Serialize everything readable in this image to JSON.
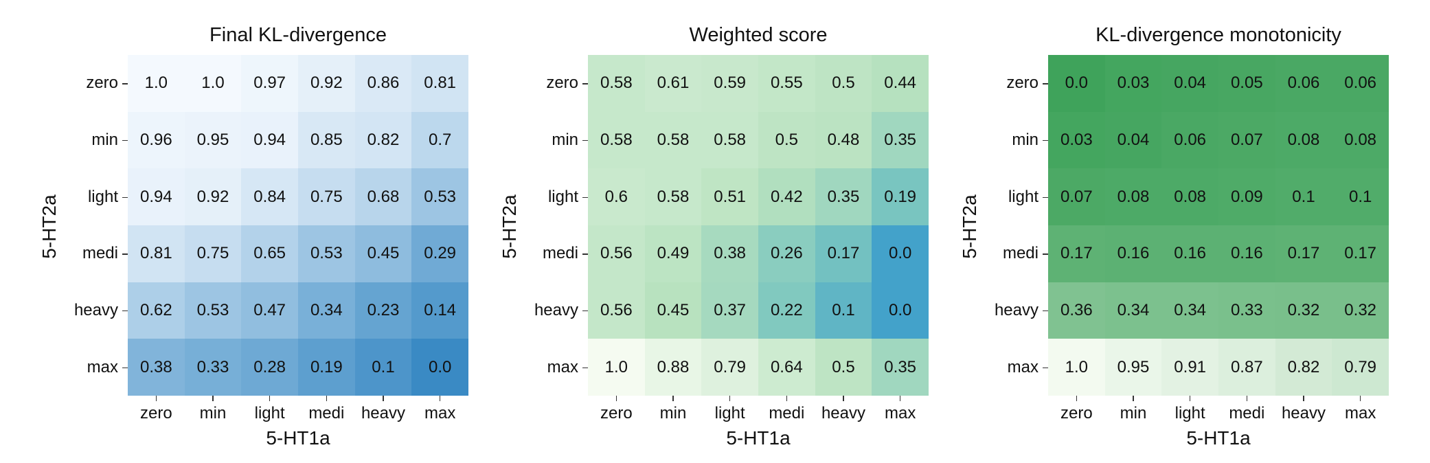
{
  "chart_data": [
    {
      "type": "heatmap",
      "title": "Final KL-divergence",
      "xlabel": "5-HT1a",
      "ylabel": "5-HT2a",
      "x_categories": [
        "zero",
        "min",
        "light",
        "medi",
        "heavy",
        "max"
      ],
      "y_categories": [
        "zero",
        "min",
        "light",
        "medi",
        "heavy",
        "max"
      ],
      "colormap": "Blues",
      "color_range": [
        0.0,
        1.0
      ],
      "low_color": "#f4f9fe",
      "high_color": "#3a8ac4",
      "values": [
        [
          1.0,
          1.0,
          0.97,
          0.92,
          0.86,
          0.81
        ],
        [
          0.96,
          0.95,
          0.94,
          0.85,
          0.82,
          0.7
        ],
        [
          0.94,
          0.92,
          0.84,
          0.75,
          0.68,
          0.53
        ],
        [
          0.81,
          0.75,
          0.65,
          0.53,
          0.45,
          0.29
        ],
        [
          0.62,
          0.53,
          0.47,
          0.34,
          0.23,
          0.14
        ],
        [
          0.38,
          0.33,
          0.28,
          0.19,
          0.1,
          0.0
        ]
      ],
      "labels": [
        [
          "1.0",
          "1.0",
          "0.97",
          "0.92",
          "0.86",
          "0.81"
        ],
        [
          "0.96",
          "0.95",
          "0.94",
          "0.85",
          "0.82",
          "0.7"
        ],
        [
          "0.94",
          "0.92",
          "0.84",
          "0.75",
          "0.68",
          "0.53"
        ],
        [
          "0.81",
          "0.75",
          "0.65",
          "0.53",
          "0.45",
          "0.29"
        ],
        [
          "0.62",
          "0.53",
          "0.47",
          "0.34",
          "0.23",
          "0.14"
        ],
        [
          "0.38",
          "0.33",
          "0.28",
          "0.19",
          "0.1",
          "0.0"
        ]
      ],
      "reverse": true
    },
    {
      "type": "heatmap",
      "title": "Weighted score",
      "xlabel": "5-HT1a",
      "ylabel": "5-HT2a",
      "x_categories": [
        "zero",
        "min",
        "light",
        "medi",
        "heavy",
        "max"
      ],
      "y_categories": [
        "zero",
        "min",
        "light",
        "medi",
        "heavy",
        "max"
      ],
      "colormap": "GnBu",
      "color_range": [
        0.0,
        1.0
      ],
      "low_color": "#f5fbf1",
      "high_color": "#43a2ca",
      "values": [
        [
          0.58,
          0.61,
          0.59,
          0.55,
          0.5,
          0.44
        ],
        [
          0.58,
          0.58,
          0.58,
          0.5,
          0.48,
          0.35
        ],
        [
          0.6,
          0.58,
          0.51,
          0.42,
          0.35,
          0.19
        ],
        [
          0.56,
          0.49,
          0.38,
          0.26,
          0.17,
          0.0
        ],
        [
          0.56,
          0.45,
          0.37,
          0.22,
          0.1,
          0.0
        ],
        [
          1.0,
          0.88,
          0.79,
          0.64,
          0.5,
          0.35
        ]
      ],
      "labels": [
        [
          "0.58",
          "0.61",
          "0.59",
          "0.55",
          "0.5",
          "0.44"
        ],
        [
          "0.58",
          "0.58",
          "0.58",
          "0.5",
          "0.48",
          "0.35"
        ],
        [
          "0.6",
          "0.58",
          "0.51",
          "0.42",
          "0.35",
          "0.19"
        ],
        [
          "0.56",
          "0.49",
          "0.38",
          "0.26",
          "0.17",
          "0.0"
        ],
        [
          "0.56",
          "0.45",
          "0.37",
          "0.22",
          "0.1",
          "0.0"
        ],
        [
          "1.0",
          "0.88",
          "0.79",
          "0.64",
          "0.5",
          "0.35"
        ]
      ],
      "reverse": true
    },
    {
      "type": "heatmap",
      "title": "KL-divergence monotonicity",
      "xlabel": "5-HT1a",
      "ylabel": "5-HT2a",
      "x_categories": [
        "zero",
        "min",
        "light",
        "medi",
        "heavy",
        "max"
      ],
      "y_categories": [
        "zero",
        "min",
        "light",
        "medi",
        "heavy",
        "max"
      ],
      "colormap": "Greens",
      "color_range": [
        0.0,
        1.0
      ],
      "low_color": "#f3faf0",
      "high_color": "#3fa35b",
      "values": [
        [
          0.0,
          0.03,
          0.04,
          0.05,
          0.06,
          0.06
        ],
        [
          0.03,
          0.04,
          0.06,
          0.07,
          0.08,
          0.08
        ],
        [
          0.07,
          0.08,
          0.08,
          0.09,
          0.1,
          0.1
        ],
        [
          0.17,
          0.16,
          0.16,
          0.16,
          0.17,
          0.17
        ],
        [
          0.36,
          0.34,
          0.34,
          0.33,
          0.32,
          0.32
        ],
        [
          1.0,
          0.95,
          0.91,
          0.87,
          0.82,
          0.79
        ]
      ],
      "labels": [
        [
          "0.0",
          "0.03",
          "0.04",
          "0.05",
          "0.06",
          "0.06"
        ],
        [
          "0.03",
          "0.04",
          "0.06",
          "0.07",
          "0.08",
          "0.08"
        ],
        [
          "0.07",
          "0.08",
          "0.08",
          "0.09",
          "0.1",
          "0.1"
        ],
        [
          "0.17",
          "0.16",
          "0.16",
          "0.16",
          "0.17",
          "0.17"
        ],
        [
          "0.36",
          "0.34",
          "0.34",
          "0.33",
          "0.32",
          "0.32"
        ],
        [
          "1.0",
          "0.95",
          "0.91",
          "0.87",
          "0.82",
          "0.79"
        ]
      ],
      "reverse": true
    }
  ]
}
